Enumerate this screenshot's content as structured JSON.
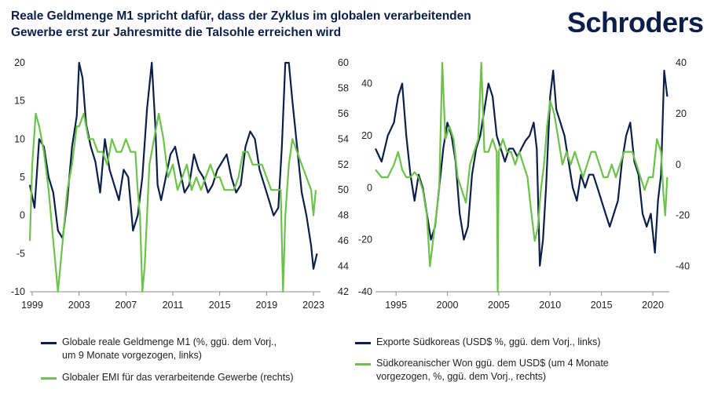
{
  "header": {
    "title_line1": "Reale Geldmenge M1 spricht dafür, dass der Zyklus im globalen verarbeitenden",
    "title_line2": "Gewerbe erst zur Jahresmitte die Talsohle erreichen wird",
    "logo": "Schroders"
  },
  "colors": {
    "navy": "#0c1f4a",
    "green": "#6cc24a",
    "axis": "#888888"
  },
  "chart_data": [
    {
      "type": "line",
      "x_ticks": [
        "1999",
        "2003",
        "2007",
        "2011",
        "2015",
        "2019",
        "2023"
      ],
      "xlim": [
        1998.8,
        2023.6
      ],
      "left_axis": {
        "ticks": [
          "20",
          "15",
          "10",
          "5",
          "0",
          "-5",
          "-10"
        ],
        "ylim": [
          -10,
          20
        ]
      },
      "right_axis": {
        "ticks": [
          "60",
          "58",
          "56",
          "54",
          "52",
          "50",
          "48",
          "46",
          "44",
          "42"
        ],
        "ylim": [
          42,
          60
        ]
      },
      "series": [
        {
          "name": "Globale reale Geldmenge M1 (%, ggü. dem Vorj., um 9 Monate vorgezogen, links)",
          "axis": "left",
          "color": "#0c1f4a",
          "x": [
            1998.8,
            1999.2,
            1999.6,
            2000.0,
            2000.4,
            2000.8,
            2001.2,
            2001.6,
            2002.0,
            2002.4,
            2002.8,
            2003.0,
            2003.3,
            2003.6,
            2004.0,
            2004.4,
            2004.8,
            2005.2,
            2005.6,
            2006.0,
            2006.4,
            2006.8,
            2007.2,
            2007.6,
            2008.0,
            2008.4,
            2008.8,
            2009.2,
            2009.5,
            2009.7,
            2010.0,
            2010.4,
            2010.8,
            2011.2,
            2011.6,
            2012.0,
            2012.4,
            2012.8,
            2013.2,
            2013.6,
            2014.0,
            2014.4,
            2014.8,
            2015.2,
            2015.6,
            2016.0,
            2016.4,
            2016.8,
            2017.2,
            2017.6,
            2018.0,
            2018.4,
            2018.8,
            2019.2,
            2019.6,
            2020.0,
            2020.3,
            2020.6,
            2020.9,
            2021.2,
            2021.6,
            2022.0,
            2022.4,
            2022.8,
            2023.0,
            2023.3
          ],
          "values": [
            4,
            1,
            10,
            9,
            5,
            3,
            -2,
            -3,
            2,
            9,
            13,
            20,
            18,
            12,
            9,
            7,
            3,
            10,
            6,
            4,
            2,
            6,
            5,
            -2,
            0,
            5,
            14,
            20,
            12,
            4,
            2,
            5,
            8,
            9,
            6,
            3,
            4,
            8,
            6,
            5,
            3,
            4,
            6,
            7,
            8,
            5,
            3,
            4,
            9,
            11,
            10,
            6,
            4,
            2,
            0,
            1,
            9,
            20,
            20,
            15,
            9,
            3,
            0,
            -4,
            -7,
            -5
          ]
        },
        {
          "name": "Globaler EMI für das verarbeitende Gewerbe (rechts)",
          "axis": "right",
          "color": "#6cc24a",
          "x": [
            1998.8,
            1999.0,
            1999.3,
            1999.6,
            2000.0,
            2000.4,
            2000.8,
            2001.2,
            2001.6,
            2002.0,
            2002.4,
            2002.8,
            2003.0,
            2003.4,
            2003.8,
            2004.2,
            2004.6,
            2005.0,
            2005.4,
            2005.8,
            2006.2,
            2006.6,
            2007.0,
            2007.4,
            2007.8,
            2008.0,
            2008.2,
            2008.4,
            2008.6,
            2008.8,
            2009.0,
            2009.4,
            2009.8,
            2010.2,
            2010.6,
            2011.0,
            2011.4,
            2011.8,
            2012.2,
            2012.6,
            2013.0,
            2013.4,
            2013.8,
            2014.2,
            2014.6,
            2015.0,
            2015.4,
            2015.8,
            2016.2,
            2016.6,
            2017.0,
            2017.4,
            2017.8,
            2018.2,
            2018.6,
            2019.0,
            2019.4,
            2019.8,
            2020.2,
            2020.4,
            2020.6,
            2020.9,
            2021.2,
            2021.6,
            2022.0,
            2022.4,
            2022.8,
            2023.0,
            2023.2
          ],
          "values": [
            46,
            52,
            56,
            55,
            53,
            50,
            46,
            42,
            46,
            50,
            52,
            55,
            55,
            56,
            54,
            54,
            53,
            53,
            52,
            54,
            53,
            53,
            54,
            53,
            53,
            50,
            48,
            42,
            44,
            48,
            52,
            54,
            56,
            54,
            51,
            52,
            50,
            51,
            52,
            50,
            51,
            50,
            51,
            52,
            51,
            51,
            50,
            50,
            50,
            51,
            53,
            53,
            52,
            52,
            52,
            51,
            50,
            50,
            50,
            42,
            48,
            52,
            54,
            53,
            52,
            51,
            50,
            48,
            50
          ]
        }
      ]
    },
    {
      "type": "line",
      "x_ticks": [
        "1995",
        "2000",
        "2005",
        "2010",
        "2015",
        "2020"
      ],
      "xlim": [
        1993.0,
        2021.6
      ],
      "left_axis": {
        "ticks": [
          "40",
          "20",
          "0",
          "-20",
          "-40"
        ],
        "ylim": [
          -40,
          48
        ]
      },
      "right_axis": {
        "ticks": [
          "40",
          "20",
          "0",
          "-20",
          "-40"
        ],
        "ylim": [
          -50,
          40
        ]
      },
      "series": [
        {
          "name": "Exporte Südkoreas (USD$ %, ggü. dem Vorj., links)",
          "axis": "left",
          "color": "#0c1f4a",
          "x": [
            1993.0,
            1993.6,
            1994.2,
            1994.8,
            1995.2,
            1995.6,
            1996.0,
            1996.4,
            1996.8,
            1997.2,
            1997.6,
            1998.0,
            1998.4,
            1998.8,
            1999.2,
            1999.6,
            2000.0,
            2000.4,
            2000.8,
            2001.2,
            2001.6,
            2002.0,
            2002.4,
            2002.8,
            2003.2,
            2003.6,
            2004.0,
            2004.4,
            2004.8,
            2005.2,
            2005.6,
            2006.0,
            2006.4,
            2006.8,
            2007.2,
            2007.6,
            2008.0,
            2008.4,
            2008.7,
            2009.0,
            2009.3,
            2009.6,
            2010.0,
            2010.3,
            2010.6,
            2011.0,
            2011.4,
            2011.8,
            2012.2,
            2012.6,
            2013.0,
            2013.4,
            2013.8,
            2014.2,
            2014.6,
            2015.0,
            2015.4,
            2015.8,
            2016.2,
            2016.6,
            2017.0,
            2017.4,
            2017.8,
            2018.2,
            2018.6,
            2019.0,
            2019.4,
            2019.8,
            2020.2,
            2020.5,
            2020.8,
            2021.1,
            2021.4
          ],
          "values": [
            15,
            10,
            20,
            25,
            35,
            40,
            20,
            5,
            -5,
            5,
            0,
            -10,
            -20,
            -15,
            0,
            15,
            25,
            20,
            10,
            -10,
            -20,
            -15,
            5,
            15,
            20,
            30,
            40,
            35,
            20,
            15,
            10,
            15,
            15,
            12,
            15,
            18,
            20,
            25,
            15,
            -30,
            -20,
            0,
            35,
            45,
            30,
            25,
            20,
            10,
            0,
            -5,
            5,
            0,
            5,
            5,
            0,
            -5,
            -10,
            -15,
            -10,
            -5,
            10,
            20,
            25,
            10,
            5,
            -10,
            -15,
            -10,
            -25,
            -5,
            5,
            45,
            35
          ]
        },
        {
          "name": "Südkoreanischer Won ggü. dem USD$ (um 4 Monate vorgezogen, %, ggü. dem Vorj., rechts)",
          "axis": "right",
          "color": "#6cc24a",
          "x": [
            1993.0,
            1993.6,
            1994.2,
            1994.8,
            1995.2,
            1995.6,
            1996.0,
            1996.4,
            1996.8,
            1997.2,
            1997.6,
            1998.0,
            1998.3,
            1998.6,
            1998.9,
            1999.2,
            1999.5,
            1999.8,
            2000.2,
            2000.6,
            2001.0,
            2001.4,
            2001.8,
            2002.2,
            2002.6,
            2003.0,
            2003.3,
            2003.6,
            2004.0,
            2004.4,
            2004.8,
            2004.9,
            2005.0,
            2005.4,
            2005.8,
            2006.2,
            2006.6,
            2007.0,
            2007.4,
            2007.8,
            2008.2,
            2008.5,
            2008.8,
            2009.1,
            2009.4,
            2009.7,
            2010.0,
            2010.4,
            2010.8,
            2011.2,
            2011.6,
            2012.0,
            2012.4,
            2012.8,
            2013.2,
            2013.6,
            2014.0,
            2014.4,
            2014.8,
            2015.2,
            2015.6,
            2016.0,
            2016.4,
            2016.8,
            2017.2,
            2017.6,
            2018.0,
            2018.4,
            2018.8,
            2019.2,
            2019.6,
            2020.0,
            2020.4,
            2020.8,
            2021.0,
            2021.2,
            2021.4
          ],
          "values": [
            -2,
            -5,
            -5,
            0,
            5,
            -2,
            -5,
            -5,
            -3,
            -5,
            -10,
            -20,
            -40,
            -30,
            -20,
            -10,
            40,
            10,
            15,
            10,
            -5,
            -10,
            -15,
            0,
            5,
            10,
            40,
            5,
            5,
            10,
            5,
            -50,
            5,
            10,
            5,
            5,
            0,
            5,
            0,
            -5,
            -20,
            -30,
            -25,
            -10,
            0,
            15,
            25,
            20,
            10,
            0,
            5,
            0,
            5,
            0,
            -5,
            0,
            5,
            5,
            0,
            -5,
            -5,
            0,
            -5,
            0,
            5,
            5,
            5,
            0,
            -5,
            -10,
            -5,
            -5,
            10,
            5,
            -10,
            -20,
            -5
          ]
        }
      ]
    }
  ],
  "legends": {
    "left": [
      {
        "line1": "Globale reale Geldmenge M1 (%, ggü. dem Vorj.,",
        "line2": "um 9 Monate vorgezogen, links)"
      },
      {
        "line1": "Globaler EMI für das verarbeitende Gewerbe (rechts)",
        "line2": ""
      }
    ],
    "right": [
      {
        "line1": "Exporte Südkoreas (USD$ %, ggü. dem Vorj., links)",
        "line2": ""
      },
      {
        "line1": "Südkoreanischer Won ggü. dem USD$ (um 4 Monate",
        "line2": "vorgezogen, %, ggü. dem Vorj., rechts)"
      }
    ]
  }
}
